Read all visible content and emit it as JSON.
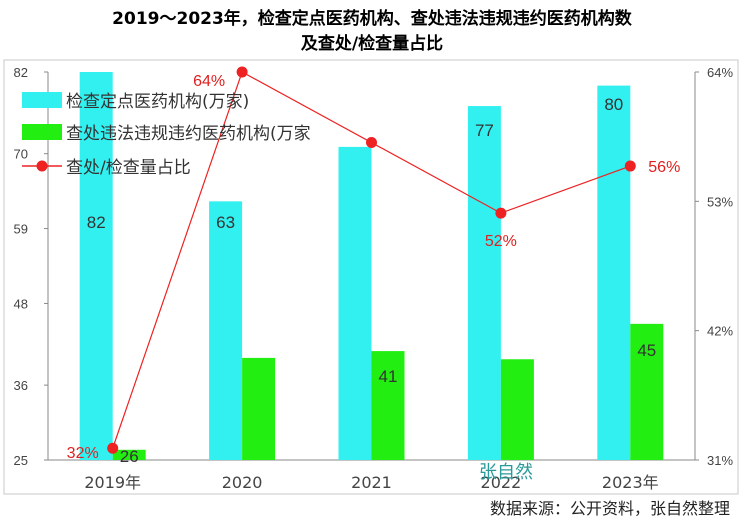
{
  "title_line1": "2019～2023年，检查定点医药机构、查处违法违规违约医药机构数",
  "title_line2": "及查处/检查量占比",
  "source": "数据来源：公开资料，张自然整理",
  "watermark": "张自然",
  "chart_data": {
    "type": "bar",
    "categories": [
      "2019年",
      "2020",
      "2021",
      "2022",
      "2023年"
    ],
    "series": [
      {
        "name": "检查定点医药机构(万家)",
        "values": [
          82,
          63,
          71,
          77,
          80
        ],
        "color": "#33f0f0",
        "labels": [
          "82",
          "63",
          "",
          "77",
          "80"
        ]
      },
      {
        "name": "查处违法违规违约医药机构(万家",
        "values": [
          26.5,
          40,
          41,
          39.8,
          45
        ],
        "color": "#22ee11",
        "labels": [
          "26",
          "",
          "41",
          "",
          "45"
        ]
      },
      {
        "name": "查处/检查量占比",
        "type": "line",
        "axis": "right",
        "values": [
          32,
          64,
          58,
          52,
          56
        ],
        "color": "#ee2222",
        "labels": [
          "32%",
          "64%",
          "",
          "52%",
          "56%"
        ]
      }
    ],
    "yaxis_left": {
      "min": 25,
      "max": 82,
      "ticks": [
        25,
        36,
        48,
        59,
        70,
        82
      ]
    },
    "yaxis_right": {
      "min": 31,
      "max": 64,
      "ticks": [
        "31%",
        "42%",
        "53%",
        "64%"
      ],
      "tick_values": [
        31,
        42,
        53,
        64
      ]
    },
    "legend_position": "top-left"
  }
}
